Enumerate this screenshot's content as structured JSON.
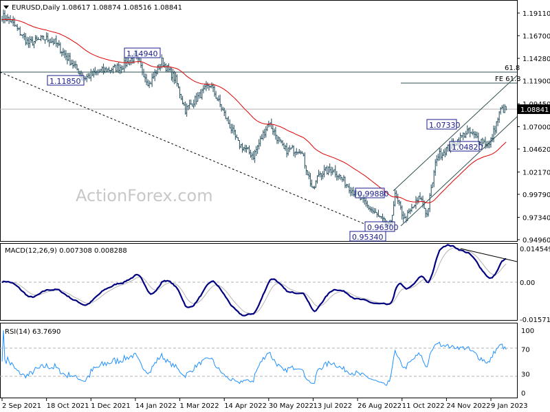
{
  "header": {
    "menu_icon": "triangle-down-icon",
    "symbol": "EURUSD,Daily",
    "ohlc": "1.08617 1.08874 1.08516 1.08841"
  },
  "watermark": "ActionForex.com",
  "colors": {
    "bars": "#1f4a5a",
    "moving_average": "#e00000",
    "macd": "#000080",
    "signal": "#b4b4b4",
    "rsi": "#1e90ff",
    "current_price_bg": "#000000"
  },
  "chart_data": [
    {
      "type": "ohlc",
      "title": "EURUSD,Daily",
      "ylim": [
        0.9496,
        1.1911
      ],
      "price_ticks": [
        "1.19110",
        "1.16700",
        "1.14280",
        "1.11900",
        "1.09450",
        "1.07000",
        "1.04620",
        "1.02170",
        "0.99790",
        "0.97340",
        "0.94960"
      ],
      "current_price": "1.08841",
      "x_ticks": [
        "2 Sep 2021",
        "18 Oct 2021",
        "1 Dec 2021",
        "14 Jan 2022",
        "1 Mar 2022",
        "14 Apr 2022",
        "30 May 2022",
        "13 Jul 2022",
        "26 Aug 2022",
        "11 Oct 2022",
        "24 Nov 2022",
        "9 Jan 2023"
      ],
      "swing_closes": [
        [
          "2021-09-02",
          1.188
        ],
        [
          "2021-09-10",
          1.183
        ],
        [
          "2021-09-29",
          1.159
        ],
        [
          "2021-10-15",
          1.164
        ],
        [
          "2021-10-26",
          1.16
        ],
        [
          "2021-11-24",
          1.122
        ],
        [
          "2021-12-10",
          1.129
        ],
        [
          "2021-12-31",
          1.134
        ],
        [
          "2022-01-14",
          1.145
        ],
        [
          "2022-01-28",
          1.115
        ],
        [
          "2022-02-10",
          1.14
        ],
        [
          "2022-02-24",
          1.12
        ],
        [
          "2022-03-07",
          1.088
        ],
        [
          "2022-03-31",
          1.115
        ],
        [
          "2022-04-28",
          1.052
        ],
        [
          "2022-05-13",
          1.039
        ],
        [
          "2022-05-30",
          1.075
        ],
        [
          "2022-06-14",
          1.045
        ],
        [
          "2022-06-30",
          1.046
        ],
        [
          "2022-07-13",
          1.001
        ],
        [
          "2022-07-19",
          1.02
        ],
        [
          "2022-08-02",
          1.025
        ],
        [
          "2022-08-26",
          0.996
        ],
        [
          "2022-09-28",
          0.962
        ],
        [
          "2022-10-04",
          0.996
        ],
        [
          "2022-10-13",
          0.971
        ],
        [
          "2022-10-28",
          0.995
        ],
        [
          "2022-11-04",
          0.976
        ],
        [
          "2022-11-15",
          1.038
        ],
        [
          "2022-12-05",
          1.054
        ],
        [
          "2022-12-15",
          1.065
        ],
        [
          "2023-01-06",
          1.05
        ],
        [
          "2023-01-18",
          1.088
        ],
        [
          "2023-01-24",
          1.0884
        ]
      ],
      "annotations": [
        {
          "text": "1.11850",
          "price": 1.1185
        },
        {
          "text": "1.14940",
          "price": 1.1494
        },
        {
          "text": "0.99880",
          "price": 0.9988
        },
        {
          "text": "0.96300",
          "price": 0.963
        },
        {
          "text": "0.95340",
          "price": 0.9534
        },
        {
          "text": "1.07330",
          "price": 1.0733
        },
        {
          "text": "1.04820",
          "price": 1.0482
        }
      ],
      "levels": [
        {
          "text": "61.8"
        },
        {
          "text": "FE 61.8"
        }
      ]
    },
    {
      "type": "line",
      "title": "MACD(12,26,9) 0.007308 0.008288",
      "ylim": [
        -0.015712,
        0.014549
      ],
      "y_ticks": [
        "0.014549",
        "0.00",
        "-0.015712"
      ]
    },
    {
      "type": "line",
      "title": "RSI(14) 63.7690",
      "ylim": [
        0,
        100
      ],
      "y_ticks": [
        "100",
        "70",
        "30",
        "0"
      ],
      "levels": [
        70,
        30
      ]
    }
  ]
}
